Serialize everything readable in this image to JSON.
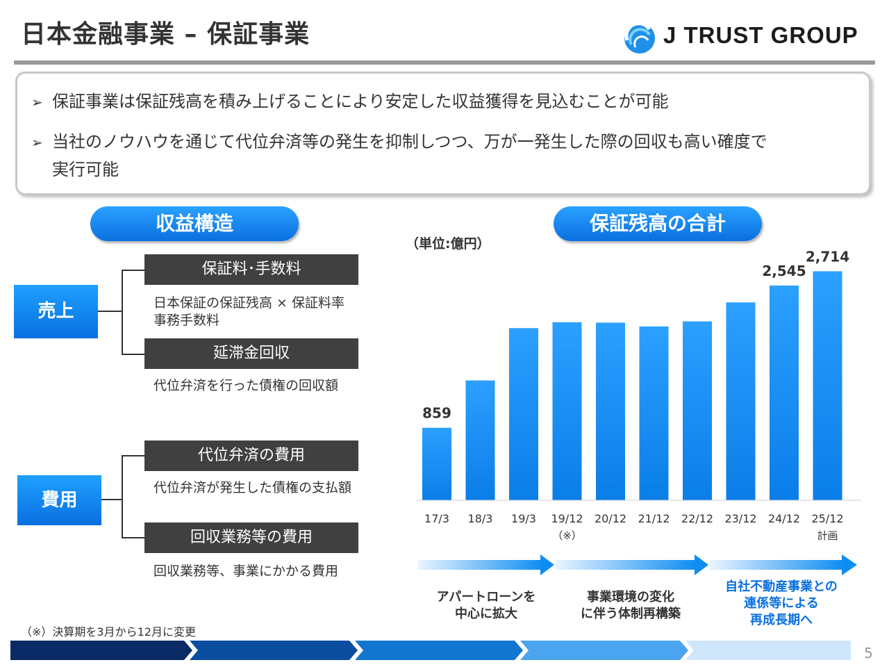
{
  "header": {
    "title": "日本金融事業 – 保証事業",
    "logo_text": "J TRUST GROUP"
  },
  "summary": {
    "bullets": [
      "保証事業は保証残高を積み上げることにより安定した収益獲得を見込むことが可能",
      "当社のノウハウを通じて代位弁済等の発生を抑制しつつ、万が一発生した際の回収も高い確度で",
      "実行可能"
    ],
    "bullet_marker": "➢"
  },
  "revenue_structure": {
    "heading": "収益構造",
    "sales": {
      "label": "売上",
      "items": [
        {
          "title": "保証料･手数料",
          "desc_lines": [
            "日本保証の保証残高 × 保証料率",
            "事務手数料"
          ]
        },
        {
          "title": "延滞金回収",
          "desc_lines": [
            "代位弁済を行った債権の回収額"
          ]
        }
      ]
    },
    "costs": {
      "label": "費用",
      "items": [
        {
          "title": "代位弁済の費用",
          "desc_lines": [
            "代位弁済が発生した債権の支払額"
          ]
        },
        {
          "title": "回収業務等の費用",
          "desc_lines": [
            "回収業務等、事業にかかる費用"
          ]
        }
      ]
    }
  },
  "balance_section": {
    "heading": "保証残高の合計",
    "unit": "（単位:億円）",
    "phases": [
      {
        "text_lines": [
          "アパートローンを",
          "中心に拡大"
        ]
      },
      {
        "text_lines": [
          "事業環境の変化",
          "に伴う体制再構築"
        ]
      },
      {
        "text_lines": [
          "自社不動産事業との",
          "連係等による",
          "再成長期へ"
        ]
      }
    ]
  },
  "chart_data": {
    "type": "bar",
    "categories": [
      "17/3",
      "18/3",
      "19/3",
      "19/12",
      "20/12",
      "21/12",
      "22/12",
      "23/12",
      "24/12",
      "25/12"
    ],
    "category_sublabels": [
      "",
      "",
      "",
      "（※）",
      "",
      "",
      "",
      "",
      "",
      "計画"
    ],
    "values": [
      859,
      1420,
      2040,
      2110,
      2105,
      2060,
      2120,
      2345,
      2545,
      2714
    ],
    "data_labels": [
      "859",
      "",
      "",
      "",
      "",
      "",
      "",
      "",
      "2,545",
      "2,714"
    ],
    "ylim": [
      0,
      2800
    ],
    "grid": false,
    "bar_color": "#0a7ee8",
    "bar_color_top": "#2ba0ff"
  },
  "footnote": "（※）決算期を3月から12月に変更",
  "page_number": "5",
  "colors": {
    "accent_blue": "#0a7ee8",
    "dark_bar": "#404040",
    "rule_gray": "#9b9b9b"
  }
}
